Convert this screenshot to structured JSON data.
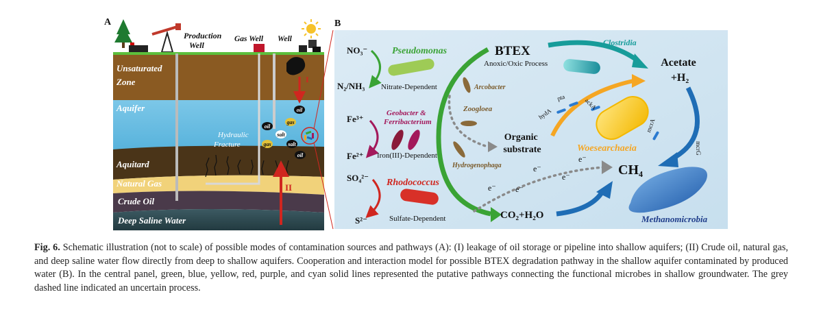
{
  "panel_a": {
    "label": "A",
    "production_well": "Production\nWell",
    "gas_well": "Gas Well",
    "well": "Well",
    "layers": {
      "unsaturated": "Unsaturated\nZone",
      "aquifer": "Aquifer",
      "aquitard": "Aquitard",
      "natural_gas": "Natural Gas",
      "crude_oil": "Crude Oil",
      "deep_saline": "Deep Saline Water"
    },
    "hydraulic_fracture": "Hydraulic\nFracture",
    "marker_i": "I",
    "marker_ii": "II",
    "blob_labels": [
      "oil",
      "gas",
      "oil",
      "salt",
      "gas",
      "salt",
      "oil"
    ]
  },
  "panel_b": {
    "label": "B",
    "btex": "BTEX",
    "btex_sub": "Anoxic/Oxic Process",
    "acetate": "Acetate\n+H₂",
    "ch4": "CH₄",
    "co2": "CO₂+H₂O",
    "organic": "Organic\nsubstrate",
    "no3": "NO₃⁻",
    "n2": "N₂/NH₃",
    "nitrate_dep": "Nitrate-Dependent",
    "fe3": "Fe³⁺",
    "fe2": "Fe²⁺",
    "iron_dep": "Iron(III)-Dependent",
    "so4": "SO₄²⁻",
    "s2": "S²⁻",
    "sulfate_dep": "Sulfate-Dependent",
    "microbes": {
      "pseudomonas": "Pseudomonas",
      "geobacter": "Geobacter &\nFerribacterium",
      "rhodococcus": "Rhodococcus",
      "arcobacter": "Arcobacter",
      "zoogloea": "Zoogloea",
      "hydrogenophaga": "Hydrogenophaga",
      "clostridia": "Clostridia",
      "woesearchaeia": "Woesearchaeia",
      "methanomicrobia": "Methanomicrobia"
    },
    "genes": [
      "pta",
      "ackA",
      "hydA",
      "mcrA",
      "mcrB",
      "mcrG"
    ],
    "electron": "e⁻",
    "colors": {
      "green": "#3aa335",
      "blue": "#1f6db5",
      "yellow": "#f5a623",
      "red": "#d0261f",
      "purple": "#a3195b",
      "cyan": "#179c9a",
      "grey": "#8a8a8a",
      "bg": "#d3e6f2"
    }
  },
  "caption": {
    "label": "Fig. 6.",
    "text": "Schematic illustration (not to scale) of possible modes of contamination sources and pathways (A): (I) leakage of oil storage or pipeline into shallow aquifers; (II) Crude oil, natural gas, and deep saline water flow directly from deep to shallow aquifers. Cooperation and interaction model for possible BTEX degradation pathway in the shallow aquifer contaminated by produced water (B). In the central panel, green, blue, yellow, red, purple, and cyan solid lines represented the putative pathways connecting the functional microbes in shallow groundwater. The grey dashed line indicated an uncertain process."
  }
}
